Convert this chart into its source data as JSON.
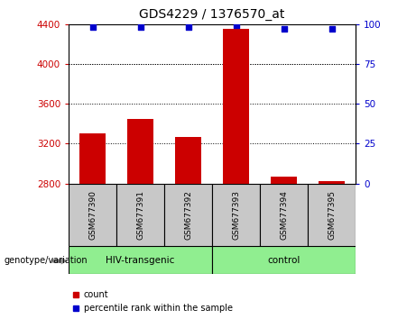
{
  "title": "GDS4229 / 1376570_at",
  "samples": [
    "GSM677390",
    "GSM677391",
    "GSM677392",
    "GSM677393",
    "GSM677394",
    "GSM677395"
  ],
  "bar_values": [
    3300,
    3450,
    3270,
    4350,
    2870,
    2820
  ],
  "percentile_values": [
    98,
    98,
    98,
    99,
    97,
    97
  ],
  "bar_color": "#cc0000",
  "dot_color": "#0000cc",
  "ylim_left": [
    2800,
    4400
  ],
  "ylim_right": [
    0,
    100
  ],
  "yticks_left": [
    2800,
    3200,
    3600,
    4000,
    4400
  ],
  "yticks_right": [
    0,
    25,
    50,
    75,
    100
  ],
  "grid_values": [
    3200,
    3600,
    4000
  ],
  "group1_label": "HIV-transgenic",
  "group2_label": "control",
  "group_color": "#90EE90",
  "genotype_label": "genotype/variation",
  "legend_count_label": "count",
  "legend_percentile_label": "percentile rank within the sample",
  "title_fontsize": 10,
  "axis_color_left": "#cc0000",
  "axis_color_right": "#0000cc",
  "bar_width": 0.55,
  "sample_box_color": "#c8c8c8",
  "fig_width": 4.61,
  "fig_height": 3.54
}
